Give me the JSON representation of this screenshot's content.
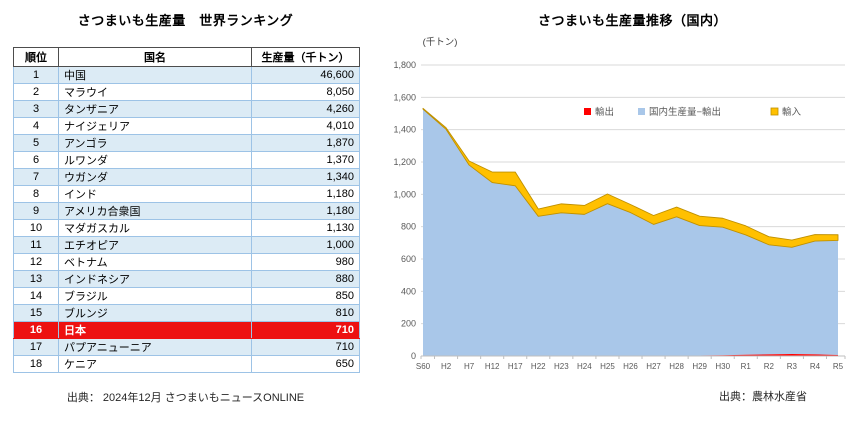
{
  "left_panel": {
    "title": "さつまいも生産量　世界ランキング",
    "source": "出典： 2024年12月 さつまいもニュースONLINE",
    "table": {
      "headers": [
        "順位",
        "国名",
        "生産量（千トン）"
      ],
      "highlight_color": "#ED1111",
      "alt_row_color": "#DCEBF5",
      "border_color": "#9DC3E6",
      "rows": [
        {
          "rank": "1",
          "country": "中国",
          "value": "46,600",
          "highlight": false
        },
        {
          "rank": "2",
          "country": "マラウイ",
          "value": "8,050",
          "highlight": false
        },
        {
          "rank": "3",
          "country": "タンザニア",
          "value": "4,260",
          "highlight": false
        },
        {
          "rank": "4",
          "country": "ナイジェリア",
          "value": "4,010",
          "highlight": false
        },
        {
          "rank": "5",
          "country": "アンゴラ",
          "value": "1,870",
          "highlight": false
        },
        {
          "rank": "6",
          "country": "ルワンダ",
          "value": "1,370",
          "highlight": false
        },
        {
          "rank": "7",
          "country": "ウガンダ",
          "value": "1,340",
          "highlight": false
        },
        {
          "rank": "8",
          "country": "インド",
          "value": "1,180",
          "highlight": false
        },
        {
          "rank": "9",
          "country": "アメリカ合衆国",
          "value": "1,180",
          "highlight": false
        },
        {
          "rank": "10",
          "country": "マダガスカル",
          "value": "1,130",
          "highlight": false
        },
        {
          "rank": "11",
          "country": "エチオピア",
          "value": "1,000",
          "highlight": false
        },
        {
          "rank": "12",
          "country": "ベトナム",
          "value": "980",
          "highlight": false
        },
        {
          "rank": "13",
          "country": "インドネシア",
          "value": "880",
          "highlight": false
        },
        {
          "rank": "14",
          "country": "ブラジル",
          "value": "850",
          "highlight": false
        },
        {
          "rank": "15",
          "country": "ブルンジ",
          "value": "810",
          "highlight": false
        },
        {
          "rank": "16",
          "country": "日本",
          "value": "710",
          "highlight": true
        },
        {
          "rank": "17",
          "country": "パプアニューニア",
          "value": "710",
          "highlight": false
        },
        {
          "rank": "18",
          "country": "ケニア",
          "value": "650",
          "highlight": false
        }
      ]
    }
  },
  "right_panel": {
    "title": "さつまいも生産量推移（国内）",
    "source": "出典：農林水産省"
  },
  "chart_data": [
    {
      "type": "table",
      "title": "さつまいも生産量　世界ランキング",
      "columns": [
        "順位",
        "国名",
        "生産量（千トン）"
      ],
      "rows": [
        [
          "1",
          "中国",
          "46,600"
        ],
        [
          "2",
          "マラウイ",
          "8,050"
        ],
        [
          "3",
          "タンザニア",
          "4,260"
        ],
        [
          "4",
          "ナイジェリア",
          "4,010"
        ],
        [
          "5",
          "アンゴラ",
          "1,870"
        ],
        [
          "6",
          "ルワンダ",
          "1,370"
        ],
        [
          "7",
          "ウガンダ",
          "1,340"
        ],
        [
          "8",
          "インド",
          "1,180"
        ],
        [
          "9",
          "アメリカ合衆国",
          "1,180"
        ],
        [
          "10",
          "マダガスカル",
          "1,130"
        ],
        [
          "11",
          "エチオピア",
          "1,000"
        ],
        [
          "12",
          "ベトナム",
          "980"
        ],
        [
          "13",
          "インドネシア",
          "880"
        ],
        [
          "14",
          "ブラジル",
          "850"
        ],
        [
          "15",
          "ブルンジ",
          "810"
        ],
        [
          "16",
          "日本",
          "710"
        ],
        [
          "17",
          "パプアニューニア",
          "710"
        ],
        [
          "18",
          "ケニア",
          "650"
        ]
      ],
      "highlighted_row": "16 日本 710"
    },
    {
      "type": "area",
      "stacked": true,
      "title": "さつまいも生産量推移（国内）",
      "unit_label": "(千トン)",
      "categories": [
        "S60",
        "H2",
        "H7",
        "H12",
        "H17",
        "H22",
        "H23",
        "H24",
        "H25",
        "H26",
        "H27",
        "H28",
        "H29",
        "H30",
        "R1",
        "R2",
        "R3",
        "R4",
        "R5"
      ],
      "series": [
        {
          "name": "輸出",
          "color": "#FF0000",
          "values": [
            0,
            0,
            0,
            0,
            0,
            0,
            0,
            0,
            0,
            0,
            1,
            2,
            3,
            5,
            8,
            10,
            12,
            10,
            6
          ]
        },
        {
          "name": "国内生産量−輸出",
          "color": "#A9C7E9",
          "values": [
            1527,
            1402,
            1181,
            1073,
            1053,
            864,
            886,
            876,
            942,
            887,
            813,
            859,
            804,
            792,
            741,
            678,
            660,
            701,
            709
          ]
        },
        {
          "name": "輸入",
          "color": "#FFC000",
          "border_color": "#BF9000",
          "values": [
            5,
            10,
            25,
            65,
            85,
            45,
            55,
            55,
            60,
            50,
            55,
            60,
            58,
            55,
            56,
            50,
            45,
            40,
            35
          ]
        }
      ],
      "ylim": [
        0,
        1800
      ],
      "ytick_step": 200,
      "grid": true,
      "legend_position": "top-center-inside",
      "grid_color": "#D9D9D9",
      "axis_color": "#BFBFBF",
      "label_color": "#595959"
    }
  ]
}
